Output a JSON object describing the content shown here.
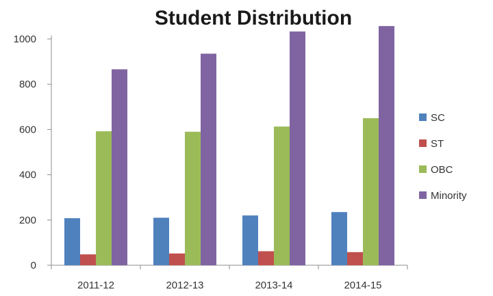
{
  "chart_data": {
    "type": "bar",
    "title": "Student Distribution",
    "xlabel": "",
    "ylabel": "",
    "categories": [
      "2011-12",
      "2012-13",
      "2013-14",
      "2014-15"
    ],
    "series": [
      {
        "name": "SC",
        "color": "#4f81bd",
        "values": [
          208,
          210,
          220,
          235
        ]
      },
      {
        "name": "ST",
        "color": "#c0504d",
        "values": [
          48,
          52,
          62,
          58
        ]
      },
      {
        "name": "OBC",
        "color": "#9bbb59",
        "values": [
          592,
          590,
          613,
          650
        ]
      },
      {
        "name": "Minority",
        "color": "#8064a2",
        "values": [
          866,
          935,
          1033,
          1057
        ]
      }
    ],
    "ylim": [
      0,
      1000
    ],
    "yticks": [
      0,
      200,
      400,
      600,
      800,
      1000
    ],
    "grid": false,
    "legend_position": "right"
  }
}
